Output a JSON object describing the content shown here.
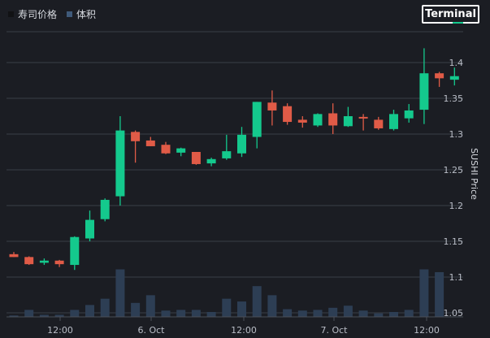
{
  "legend": {
    "price_label": "寿司价格",
    "volume_label": "体积"
  },
  "button": {
    "terminal_label": "Terminal"
  },
  "colors": {
    "up": "#14c98d",
    "down": "#e05b47",
    "volume": "#2d3e54",
    "grid": "#3a3e47",
    "background": "#1b1d23"
  },
  "chart_data": {
    "type": "candlestick",
    "ylabel": "SUSHI Price",
    "y_axis_position": "right",
    "ylim": [
      1.05,
      1.42
    ],
    "y_ticks": [
      "1.4",
      "1.35",
      "1.3",
      "1.25",
      "1.2",
      "1.15",
      "1.1",
      "1.05"
    ],
    "x_ticks": [
      "12:00",
      "6. Oct",
      "12:00",
      "7. Oct",
      "12:00"
    ],
    "grid": true,
    "legend_position": "top-left",
    "candles": [
      {
        "o": 1.132,
        "h": 1.135,
        "l": 1.128,
        "c": 1.128
      },
      {
        "o": 1.128,
        "h": 1.129,
        "l": 1.117,
        "c": 1.118
      },
      {
        "o": 1.12,
        "h": 1.126,
        "l": 1.117,
        "c": 1.123
      },
      {
        "o": 1.123,
        "h": 1.124,
        "l": 1.114,
        "c": 1.118
      },
      {
        "o": 1.117,
        "h": 1.157,
        "l": 1.11,
        "c": 1.156
      },
      {
        "o": 1.154,
        "h": 1.193,
        "l": 1.15,
        "c": 1.18
      },
      {
        "o": 1.181,
        "h": 1.21,
        "l": 1.178,
        "c": 1.208
      },
      {
        "o": 1.213,
        "h": 1.325,
        "l": 1.2,
        "c": 1.305
      },
      {
        "o": 1.303,
        "h": 1.305,
        "l": 1.26,
        "c": 1.29
      },
      {
        "o": 1.291,
        "h": 1.296,
        "l": 1.283,
        "c": 1.283
      },
      {
        "o": 1.285,
        "h": 1.289,
        "l": 1.272,
        "c": 1.273
      },
      {
        "o": 1.274,
        "h": 1.281,
        "l": 1.269,
        "c": 1.28
      },
      {
        "o": 1.275,
        "h": 1.275,
        "l": 1.257,
        "c": 1.258
      },
      {
        "o": 1.259,
        "h": 1.267,
        "l": 1.255,
        "c": 1.265
      },
      {
        "o": 1.266,
        "h": 1.299,
        "l": 1.264,
        "c": 1.276
      },
      {
        "o": 1.273,
        "h": 1.31,
        "l": 1.268,
        "c": 1.299
      },
      {
        "o": 1.296,
        "h": 1.345,
        "l": 1.28,
        "c": 1.345
      },
      {
        "o": 1.344,
        "h": 1.361,
        "l": 1.312,
        "c": 1.333
      },
      {
        "o": 1.339,
        "h": 1.343,
        "l": 1.313,
        "c": 1.317
      },
      {
        "o": 1.32,
        "h": 1.325,
        "l": 1.309,
        "c": 1.316
      },
      {
        "o": 1.312,
        "h": 1.329,
        "l": 1.31,
        "c": 1.328
      },
      {
        "o": 1.329,
        "h": 1.343,
        "l": 1.3,
        "c": 1.312
      },
      {
        "o": 1.311,
        "h": 1.338,
        "l": 1.31,
        "c": 1.325
      },
      {
        "o": 1.324,
        "h": 1.328,
        "l": 1.305,
        "c": 1.322
      },
      {
        "o": 1.32,
        "h": 1.324,
        "l": 1.306,
        "c": 1.308
      },
      {
        "o": 1.307,
        "h": 1.334,
        "l": 1.305,
        "c": 1.328
      },
      {
        "o": 1.322,
        "h": 1.342,
        "l": 1.316,
        "c": 1.333
      },
      {
        "o": 1.334,
        "h": 1.42,
        "l": 1.314,
        "c": 1.385
      },
      {
        "o": 1.385,
        "h": 1.387,
        "l": 1.366,
        "c": 1.378
      },
      {
        "o": 1.376,
        "h": 1.393,
        "l": 1.368,
        "c": 1.381
      }
    ],
    "volume": [
      0.02,
      0.1,
      0.03,
      0.03,
      0.1,
      0.17,
      0.26,
      0.68,
      0.2,
      0.31,
      0.09,
      0.1,
      0.1,
      0.07,
      0.26,
      0.22,
      0.44,
      0.31,
      0.11,
      0.09,
      0.1,
      0.13,
      0.16,
      0.09,
      0.05,
      0.07,
      0.1,
      0.68,
      0.64,
      0.0
    ]
  }
}
